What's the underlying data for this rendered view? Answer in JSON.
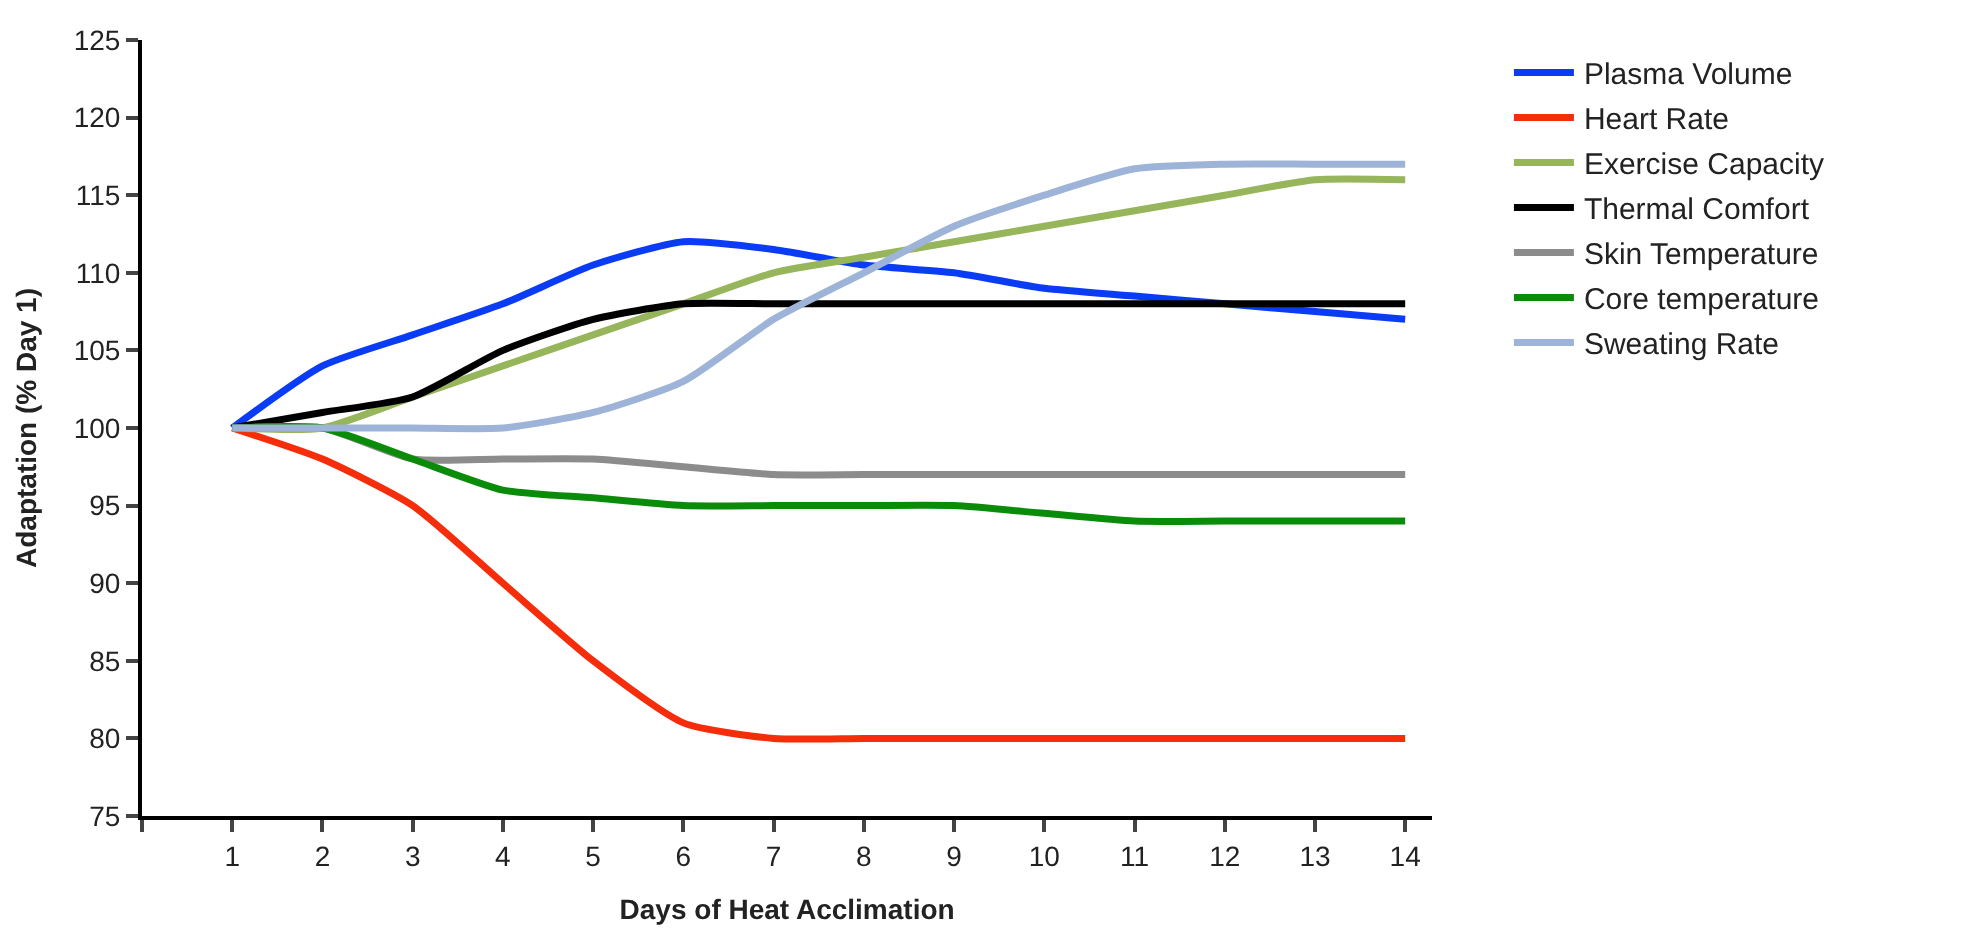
{
  "chart_data": {
    "type": "line",
    "xlabel": "Days of Heat Acclimation",
    "ylabel": "Adaptation (% Day 1)",
    "x": [
      1,
      2,
      3,
      4,
      5,
      6,
      7,
      8,
      9,
      10,
      11,
      12,
      13,
      14
    ],
    "xlim": [
      0,
      14.3
    ],
    "xticks": [
      {
        "value": 0,
        "label": null
      },
      1,
      2,
      3,
      4,
      5,
      6,
      7,
      8,
      9,
      10,
      11,
      12,
      13,
      14
    ],
    "ylim": [
      75,
      125
    ],
    "yticks": [
      75,
      80,
      85,
      90,
      95,
      100,
      105,
      110,
      115,
      120,
      125
    ],
    "legend": "right",
    "marker": "none",
    "line_style": "solid",
    "series": [
      {
        "name": "Plasma Volume",
        "color": "#0a3cf5",
        "values": [
          100,
          104,
          106,
          108,
          110.5,
          112,
          111.5,
          110.5,
          110,
          109,
          108.5,
          108,
          107.5,
          107
        ]
      },
      {
        "name": "Heart Rate",
        "color": "#f52d0a",
        "values": [
          100,
          98,
          95,
          90,
          85,
          81,
          80,
          80,
          80,
          80,
          80,
          80,
          80,
          80
        ]
      },
      {
        "name": "Exercise Capacity",
        "color": "#97b55a",
        "values": [
          100,
          100,
          102,
          104,
          106,
          108,
          110,
          111,
          112,
          113,
          114,
          115,
          116,
          116
        ]
      },
      {
        "name": "Thermal Comfort",
        "color": "#000000",
        "values": [
          100,
          101,
          102,
          105,
          107,
          108,
          108,
          108,
          108,
          108,
          108,
          108,
          108,
          108
        ]
      },
      {
        "name": "Skin Temperature",
        "color": "#8c8c8c",
        "values": [
          100,
          100,
          98,
          98,
          98,
          97.5,
          97,
          97,
          97,
          97,
          97,
          97,
          97,
          97
        ]
      },
      {
        "name": "Core temperature",
        "color": "#0a8c0a",
        "values": [
          100,
          100,
          98,
          96,
          95.5,
          95,
          95,
          95,
          95,
          94.5,
          94,
          94,
          94,
          94
        ]
      },
      {
        "name": "Sweating Rate",
        "color": "#9db3d8",
        "values": [
          100,
          100,
          100,
          100,
          101,
          103,
          107,
          110,
          113,
          115,
          116.7,
          117,
          117,
          117
        ]
      }
    ]
  }
}
